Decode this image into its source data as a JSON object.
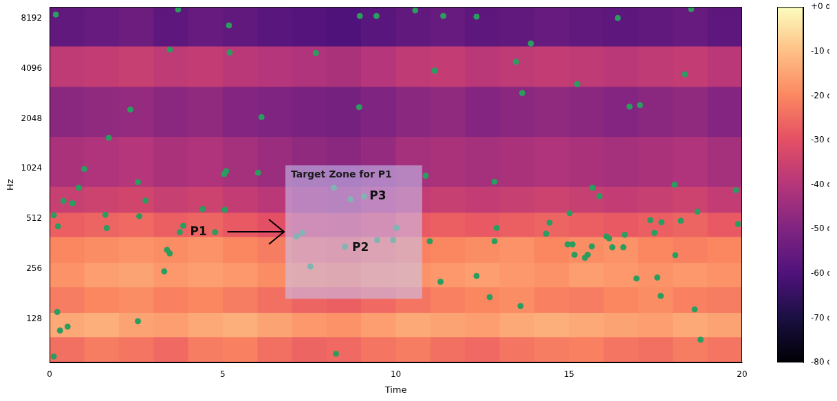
{
  "chart_data": {
    "type": "scatter",
    "x_label": "Time",
    "y_label": "Hz",
    "x": [
      0.18,
      3.71,
      5.18,
      3.47,
      5.2,
      7.69,
      8.96,
      9.44,
      10.56,
      11.37,
      12.33,
      11.12,
      13.47,
      13.9,
      13.65,
      15.24,
      16.41,
      18.53,
      18.35,
      16.75,
      17.05,
      2.33,
      1.71,
      6.12,
      8.94,
      1.0,
      0.84,
      0.4,
      0.66,
      2.55,
      2.77,
      5.04,
      5.1,
      6.02,
      5.06,
      0.12,
      0.24,
      1.61,
      1.65,
      2.59,
      3.86,
      3.76,
      4.78,
      3.39,
      3.47,
      3.31,
      10.86,
      10.98,
      7.13,
      7.29,
      8.53,
      9.46,
      9.92,
      10.02,
      7.53,
      8.21,
      8.69,
      9.08,
      11.29,
      12.85,
      12.91,
      12.85,
      12.33,
      12.71,
      13.6,
      14.34,
      14.44,
      15.02,
      14.96,
      15.1,
      15.16,
      15.46,
      15.54,
      15.66,
      15.68,
      15.88,
      16.08,
      16.16,
      16.25,
      16.57,
      16.61,
      17.35,
      17.47,
      17.67,
      16.95,
      17.55,
      17.65,
      18.05,
      18.07,
      18.23,
      18.71,
      18.63,
      18.8,
      19.82,
      19.88,
      0.22,
      0.3,
      0.52,
      2.55,
      0.12,
      8.27,
      4.42
    ],
    "values": [
      8650,
      9280,
      7440,
      5320,
      5110,
      5080,
      8480,
      8480,
      9160,
      8480,
      8400,
      3980,
      4500,
      5790,
      2920,
      3300,
      8240,
      9340,
      3780,
      2420,
      2470,
      2320,
      1570,
      2090,
      2400,
      1020,
      787,
      655,
      634,
      850,
      659,
      950,
      990,
      968,
      580,
      537,
      461,
      541,
      450,
      530,
      465,
      425,
      425,
      333,
      317,
      247,
      928,
      375,
      401,
      421,
      348,
      381,
      381,
      451,
      264,
      787,
      671,
      698,
      214,
      855,
      451,
      375,
      232,
      173,
      153,
      416,
      485,
      553,
      359,
      359,
      311,
      298,
      311,
      349,
      787,
      699,
      401,
      390,
      345,
      345,
      410,
      502,
      421,
      488,
      224,
      227,
      176,
      820,
      309,
      498,
      565,
      146,
      96,
      760,
      476,
      141,
      109,
      115,
      124,
      76,
      79,
      585
    ],
    "color": "#2a9d5f",
    "marker": "circle",
    "xlim": [
      0,
      20
    ],
    "xticks": [
      0,
      5,
      10,
      15,
      20
    ],
    "ylim": [
      70,
      9600
    ],
    "yticks": [
      128,
      256,
      512,
      1024,
      2048,
      4096,
      8192
    ],
    "log": "y",
    "grid": false,
    "spectrogram": {
      "x_edges": [
        0,
        1,
        2,
        3,
        4,
        5,
        6,
        7,
        8,
        9,
        10,
        11,
        12,
        13,
        14,
        15,
        16,
        17,
        18,
        19,
        20
      ],
      "y_edges": [
        70,
        100,
        140,
        200,
        280,
        400,
        560,
        800,
        1600,
        3200,
        5600,
        9600
      ],
      "cells": [
        [
          -24,
          -22,
          -23,
          -25,
          -22,
          -21,
          -24,
          -26,
          -25,
          -23,
          -22,
          -24,
          -25,
          -23,
          -22,
          -21,
          -23,
          -24,
          -22,
          -23
        ],
        [
          -14,
          -13,
          -15,
          -16,
          -14,
          -13,
          -15,
          -17,
          -18,
          -16,
          -14,
          -15,
          -16,
          -14,
          -13,
          -14,
          -15,
          -16,
          -14,
          -15
        ],
        [
          -22,
          -20,
          -19,
          -21,
          -20,
          -22,
          -24,
          -26,
          -27,
          -25,
          -23,
          -21,
          -20,
          -19,
          -21,
          -22,
          -20,
          -19,
          -21,
          -22
        ],
        [
          -18,
          -16,
          -15,
          -17,
          -16,
          -17,
          -19,
          -20,
          -21,
          -19,
          -18,
          -17,
          -16,
          -17,
          -18,
          -16,
          -17,
          -18,
          -17,
          -18
        ],
        [
          -20,
          -19,
          -18,
          -19,
          -18,
          -20,
          -22,
          -24,
          -25,
          -23,
          -21,
          -20,
          -19,
          -18,
          -20,
          -19,
          -18,
          -20,
          -21,
          -20
        ],
        [
          -27,
          -26,
          -25,
          -27,
          -26,
          -28,
          -30,
          -33,
          -34,
          -31,
          -28,
          -27,
          -28,
          -27,
          -26,
          -27,
          -28,
          -27,
          -26,
          -28
        ],
        [
          -36,
          -35,
          -34,
          -36,
          -35,
          -37,
          -39,
          -42,
          -43,
          -40,
          -37,
          -36,
          -37,
          -36,
          -35,
          -36,
          -37,
          -36,
          -35,
          -37
        ],
        [
          -42,
          -41,
          -40,
          -42,
          -41,
          -43,
          -45,
          -47,
          -48,
          -46,
          -43,
          -42,
          -43,
          -42,
          -41,
          -42,
          -43,
          -42,
          -41,
          -43
        ],
        [
          -48,
          -47,
          -46,
          -48,
          -47,
          -49,
          -50,
          -51,
          -52,
          -50,
          -48,
          -47,
          -49,
          -48,
          -47,
          -48,
          -49,
          -48,
          -47,
          -49
        ],
        [
          -38,
          -37,
          -36,
          -38,
          -37,
          -39,
          -40,
          -41,
          -42,
          -40,
          -38,
          -37,
          -39,
          -38,
          -37,
          -38,
          -39,
          -38,
          -37,
          -39
        ],
        [
          -56,
          -55,
          -54,
          -57,
          -55,
          -56,
          -58,
          -59,
          -60,
          -58,
          -56,
          -55,
          -57,
          -56,
          -55,
          -56,
          -57,
          -56,
          -55,
          -57
        ]
      ]
    },
    "colorbar": {
      "clim": [
        -80,
        0
      ],
      "ticks": [
        {
          "value": 0,
          "label": "+0 dB"
        },
        {
          "value": -10,
          "label": "-10 dB"
        },
        {
          "value": -20,
          "label": "-20 dB"
        },
        {
          "value": -30,
          "label": "-30 dB"
        },
        {
          "value": -40,
          "label": "-40 dB"
        },
        {
          "value": -50,
          "label": "-50 dB"
        },
        {
          "value": -60,
          "label": "-60 dB"
        },
        {
          "value": -70,
          "label": "-70 dB"
        },
        {
          "value": -80,
          "label": "-80 dB"
        }
      ]
    },
    "target_zone": {
      "label": "Target Zone for P1",
      "xlim": [
        6.81,
        10.76
      ],
      "ylim": [
        169,
        1073
      ]
    },
    "annotations": [
      {
        "text": "P1",
        "x": 4.3,
        "y": 427
      },
      {
        "text": "P2",
        "x": 8.98,
        "y": 343
      },
      {
        "text": "P3",
        "x": 9.48,
        "y": 698
      }
    ]
  }
}
